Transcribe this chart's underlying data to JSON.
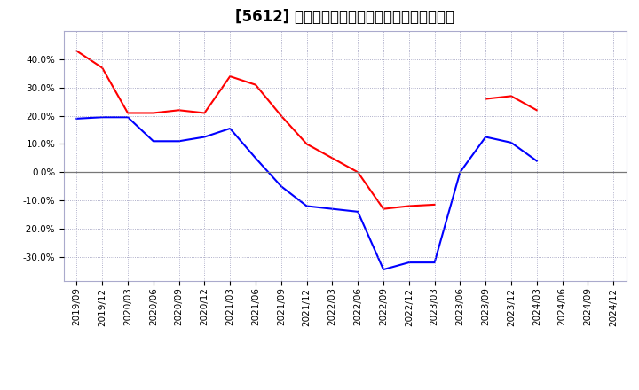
{
  "title": "[5612] 有利子負債キャッシュフロー比率の推移",
  "x_labels": [
    "2019/09",
    "2019/12",
    "2020/03",
    "2020/06",
    "2020/09",
    "2020/12",
    "2021/03",
    "2021/06",
    "2021/09",
    "2021/12",
    "2022/03",
    "2022/06",
    "2022/09",
    "2022/12",
    "2023/03",
    "2023/06",
    "2023/09",
    "2023/12",
    "2024/03",
    "2024/06",
    "2024/09",
    "2024/12"
  ],
  "red_values": [
    0.43,
    0.37,
    0.21,
    0.21,
    0.22,
    0.21,
    0.34,
    0.31,
    0.2,
    0.1,
    0.05,
    0.0,
    -0.13,
    -0.12,
    -0.115,
    null,
    0.26,
    0.27,
    0.22,
    null,
    null,
    null
  ],
  "blue_values": [
    0.19,
    0.195,
    0.195,
    0.11,
    0.11,
    0.125,
    0.155,
    0.05,
    -0.05,
    -0.12,
    -0.13,
    -0.14,
    -0.345,
    -0.32,
    -0.32,
    0.0,
    0.125,
    0.105,
    0.04,
    null,
    null,
    null
  ],
  "red_color": "#ff0000",
  "blue_color": "#0000ff",
  "ylim": [
    -0.385,
    0.5
  ],
  "yticks": [
    -0.3,
    -0.2,
    -0.1,
    0.0,
    0.1,
    0.2,
    0.3,
    0.4
  ],
  "bg_color": "#ffffff",
  "plot_bg_color": "#ffffff",
  "grid_color": "#9999bb",
  "title_fontsize": 12,
  "tick_fontsize": 7.5
}
